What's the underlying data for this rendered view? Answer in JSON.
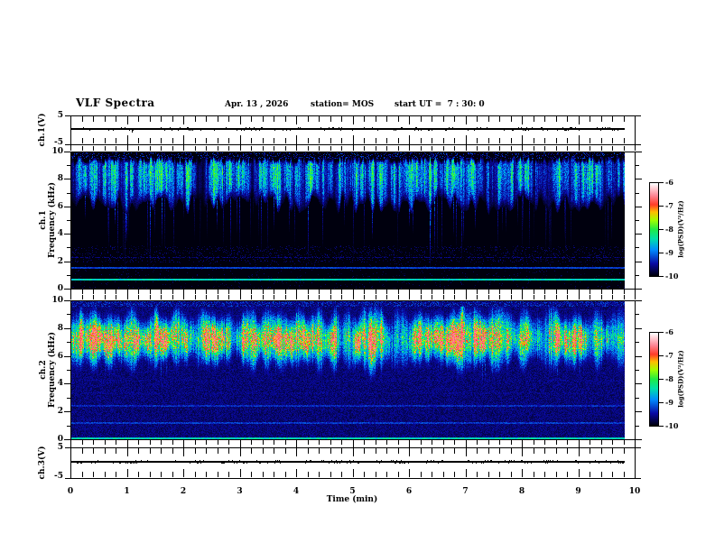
{
  "header": {
    "title": "VLF Spectra",
    "date": "Apr. 13 , 2026",
    "station": "station= MOS",
    "start_ut": "start UT =  7 : 30: 0"
  },
  "axes": {
    "time_label": "Time (min)",
    "time_tick_labels": [
      "0",
      "1",
      "2",
      "3",
      "4",
      "5",
      "6",
      "7",
      "8",
      "9",
      "10"
    ],
    "freq_tick_labels": [
      "0",
      "2",
      "4",
      "6",
      "8",
      "10"
    ],
    "strip_tick_labels": [
      "5",
      "-5"
    ]
  },
  "panels": {
    "ch1_wave_label": "ch.1(V)",
    "ch1_spec_label1": "ch.1",
    "ch1_spec_label2": "Frequency (kHz)",
    "ch2_spec_label1": "ch.2",
    "ch2_spec_label2": "Frequency (kHz)",
    "ch3_wave_label": "ch.3(V)"
  },
  "chart_data": {
    "type": "heatmap",
    "title": "VLF Spectra",
    "station": "MOS",
    "date": "Apr. 13, 2026",
    "start_ut": "7 : 30: 0",
    "time_axis": {
      "label": "Time (min)",
      "range_min": [
        0,
        10
      ],
      "major_tick_min": 1,
      "minor_tick_min": 0.2,
      "data_end_min": 9.81
    },
    "freq_axis": {
      "label": "Frequency (kHz)",
      "range_khz": [
        0,
        10
      ],
      "major_tick_khz": 2,
      "minor_tick_khz": 1
    },
    "colormap_stops": [
      [
        0.0,
        0,
        0,
        14
      ],
      [
        0.13,
        10,
        10,
        165
      ],
      [
        0.28,
        0,
        140,
        255
      ],
      [
        0.4,
        0,
        225,
        170
      ],
      [
        0.5,
        30,
        235,
        70
      ],
      [
        0.6,
        160,
        255,
        0
      ],
      [
        0.69,
        255,
        190,
        0
      ],
      [
        0.77,
        255,
        60,
        40
      ],
      [
        0.87,
        255,
        135,
        150
      ],
      [
        1.0,
        255,
        255,
        255
      ]
    ],
    "panels": [
      {
        "id": "ch1_waveform",
        "type": "line",
        "ylabel": "ch.1(V)",
        "ylim": [
          -5,
          5
        ],
        "baseline_v": 0,
        "blip_min": 1.07,
        "seed": 5,
        "description": "flat 0 V trace with tiny noise, one small downward blip near 1.07 min"
      },
      {
        "id": "ch1_spectrogram",
        "type": "heatmap",
        "ylabel": "ch.1 Frequency (kHz)",
        "ylim_khz": [
          0,
          10
        ],
        "psd_log_range": [
          -10,
          -6
        ],
        "background": "black, near -10",
        "band": {
          "range_khz": [
            5.5,
            9.5
          ],
          "peak_khz": 8.5,
          "colors": "dense impulsive vertical streaks, blue-cyan with green cores"
        },
        "lines_khz": [
          {
            "f": 0.68,
            "level": 0.33
          },
          {
            "f": 1.5,
            "level": 0.15
          },
          {
            "f": 2.28,
            "level": 0.08
          }
        ],
        "spikes": "occasional streaks reach down to 1-4 kHz",
        "seed": 11
      },
      {
        "id": "ch2_spectrogram",
        "type": "heatmap",
        "ylabel": "ch.2 Frequency (kHz)",
        "ylim_khz": [
          0,
          10
        ],
        "psd_log_range": [
          -10,
          -6
        ],
        "background": "dark blue speckle noise, near -9.5",
        "band": {
          "range_khz": [
            4.5,
            9.5
          ],
          "peak_khz": 7.1,
          "colors": "green-yellow core with orange-red maxima, cyan fringes, streaks down to 2-4 kHz"
        },
        "lines_khz": [
          {
            "f": 1.15,
            "level": 0.13
          },
          {
            "f": 2.4,
            "level": 0.12
          },
          {
            "f": 0.08,
            "level": 0.32
          }
        ],
        "seed": 77
      },
      {
        "id": "ch3_waveform",
        "type": "line",
        "ylabel": "ch.3(V)",
        "ylim": [
          -5,
          5
        ],
        "baseline_v": 0,
        "seed": 9,
        "description": "flat 0 V trace with small noise bursts"
      }
    ],
    "colorbars": [
      {
        "label": "log(PSD)(V²/Hz)",
        "tick_labels": [
          "-6",
          "-7",
          "-8",
          "-9",
          "-10"
        ],
        "range_log": [
          -10,
          -6
        ]
      },
      {
        "label": "log(PSD)(V²/Hz)",
        "tick_labels": [
          "-6",
          "-7",
          "-8",
          "-9",
          "-10"
        ],
        "range_log": [
          -10,
          -6
        ]
      }
    ]
  }
}
